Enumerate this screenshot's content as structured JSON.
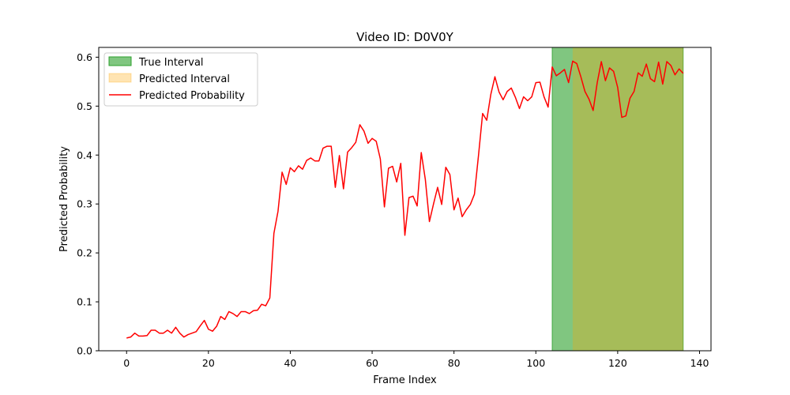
{
  "chart_data": {
    "type": "line",
    "title": "Video ID: D0V0Y",
    "xlabel": "Frame Index",
    "ylabel": "Predicted Probability",
    "xlim": [
      -6.8,
      142.8
    ],
    "ylim": [
      0,
      0.62
    ],
    "xticks": [
      0,
      20,
      40,
      60,
      80,
      100,
      120,
      140
    ],
    "yticks": [
      0.0,
      0.1,
      0.2,
      0.3,
      0.4,
      0.5,
      0.6
    ],
    "ytick_labels": [
      "0.0",
      "0.1",
      "0.2",
      "0.3",
      "0.4",
      "0.5",
      "0.6"
    ],
    "grid": false,
    "legend_position": "top-left",
    "true_interval": {
      "name": "True Interval",
      "start": 104,
      "end": 136,
      "color": "#2ca02c",
      "alpha": 0.6
    },
    "predicted_interval": {
      "name": "Predicted Interval",
      "start": 109,
      "end": 136,
      "color": "#ffa500",
      "alpha": 0.3
    },
    "series": [
      {
        "name": "Predicted Probability",
        "color": "#ff0000",
        "values": [
          0.026,
          0.028,
          0.036,
          0.03,
          0.03,
          0.031,
          0.042,
          0.042,
          0.036,
          0.036,
          0.042,
          0.036,
          0.048,
          0.036,
          0.028,
          0.033,
          0.036,
          0.039,
          0.051,
          0.062,
          0.044,
          0.04,
          0.05,
          0.07,
          0.064,
          0.08,
          0.076,
          0.07,
          0.08,
          0.08,
          0.076,
          0.082,
          0.083,
          0.095,
          0.092,
          0.108,
          0.24,
          0.285,
          0.365,
          0.34,
          0.374,
          0.366,
          0.378,
          0.371,
          0.389,
          0.394,
          0.388,
          0.388,
          0.414,
          0.418,
          0.418,
          0.334,
          0.399,
          0.331,
          0.406,
          0.415,
          0.426,
          0.462,
          0.449,
          0.424,
          0.434,
          0.428,
          0.392,
          0.294,
          0.373,
          0.377,
          0.345,
          0.383,
          0.236,
          0.313,
          0.316,
          0.296,
          0.405,
          0.35,
          0.264,
          0.3,
          0.334,
          0.299,
          0.375,
          0.36,
          0.288,
          0.312,
          0.274,
          0.288,
          0.299,
          0.32,
          0.4,
          0.485,
          0.471,
          0.524,
          0.56,
          0.529,
          0.513,
          0.53,
          0.537,
          0.518,
          0.495,
          0.519,
          0.511,
          0.519,
          0.548,
          0.549,
          0.519,
          0.498,
          0.58,
          0.562,
          0.568,
          0.575,
          0.548,
          0.592,
          0.587,
          0.56,
          0.53,
          0.514,
          0.491,
          0.548,
          0.591,
          0.552,
          0.578,
          0.571,
          0.538,
          0.477,
          0.48,
          0.516,
          0.53,
          0.568,
          0.561,
          0.586,
          0.556,
          0.55,
          0.59,
          0.545,
          0.591,
          0.583,
          0.564,
          0.576,
          0.567
        ]
      }
    ]
  }
}
